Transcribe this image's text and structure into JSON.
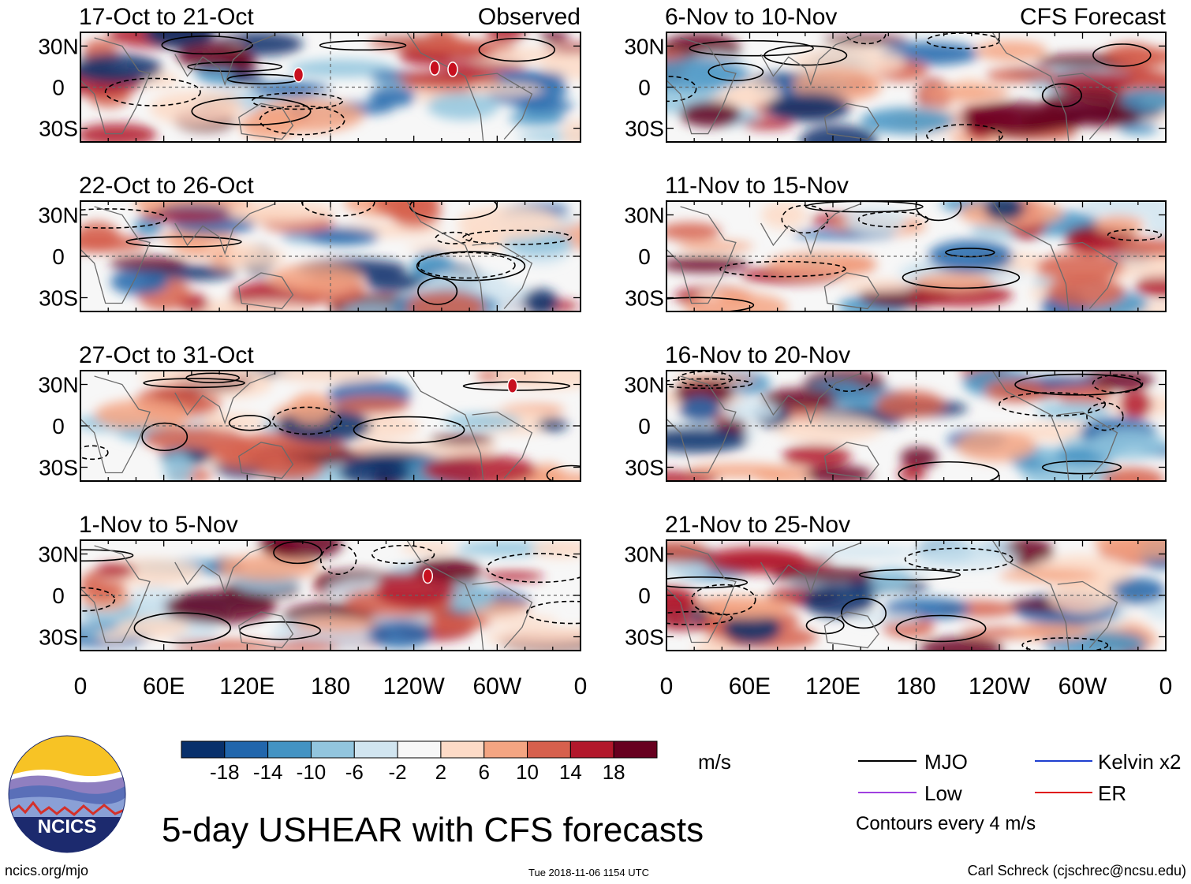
{
  "title": "5-day USHEAR with CFS forecasts",
  "site_url": "ncics.org/mjo",
  "timestamp": "Tue 2018-11-06 1154 UTC",
  "credit": "Carl Schreck (cjschrec@ncsu.edu)",
  "logo": {
    "text": "NCICS"
  },
  "column_labels": {
    "left": "Observed",
    "right": "CFS Forecast"
  },
  "chart_data": {
    "type": "heatmap",
    "variable": "USHEAR",
    "units": "m/s",
    "x_axis": {
      "tick_labels": [
        "0",
        "60E",
        "120E",
        "180",
        "120W",
        "60W",
        "0"
      ],
      "lon_values": [
        0,
        60,
        120,
        180,
        240,
        300,
        360
      ]
    },
    "y_axis": {
      "tick_labels": [
        "30N",
        "0",
        "30S"
      ],
      "lat_values": [
        30,
        0,
        -30
      ],
      "range": [
        -40,
        40
      ]
    },
    "panels": [
      {
        "label": "17-Oct to 21-Oct",
        "source": "Observed",
        "storms": [
          {
            "lon": 157,
            "lat": 9
          },
          {
            "lon": 255,
            "lat": 14
          },
          {
            "lon": 268,
            "lat": 13
          }
        ]
      },
      {
        "label": "22-Oct to 26-Oct",
        "source": "Observed",
        "storms": []
      },
      {
        "label": "27-Oct to 31-Oct",
        "source": "Observed",
        "storms": [
          {
            "lon": 311,
            "lat": 29
          }
        ]
      },
      {
        "label": "1-Nov to 5-Nov",
        "source": "Observed",
        "storms": [
          {
            "lon": 250,
            "lat": 14
          }
        ]
      },
      {
        "label": "6-Nov to 10-Nov",
        "source": "CFS Forecast",
        "storms": []
      },
      {
        "label": "11-Nov to 15-Nov",
        "source": "CFS Forecast",
        "storms": []
      },
      {
        "label": "16-Nov to 20-Nov",
        "source": "CFS Forecast",
        "storms": []
      },
      {
        "label": "21-Nov to 25-Nov",
        "source": "CFS Forecast",
        "storms": []
      }
    ],
    "colorbar": {
      "tick_labels": [
        "-18",
        "-14",
        "-10",
        "-6",
        "-2",
        "2",
        "6",
        "10",
        "14",
        "18"
      ],
      "colors": [
        "#08306b",
        "#2166ac",
        "#4393c3",
        "#92c5de",
        "#d1e5f0",
        "#f7f7f7",
        "#fddbc7",
        "#f4a582",
        "#d6604d",
        "#b2182b",
        "#67001f"
      ],
      "units_label": "m/s"
    },
    "legend": {
      "items": [
        {
          "label": "MJO",
          "color": "#000000"
        },
        {
          "label": "Kelvin x2",
          "color": "#1f3fd0"
        },
        {
          "label": "Low",
          "color": "#a040e0"
        },
        {
          "label": "ER",
          "color": "#e01010"
        }
      ],
      "note": "Contours every 4 m/s"
    }
  }
}
